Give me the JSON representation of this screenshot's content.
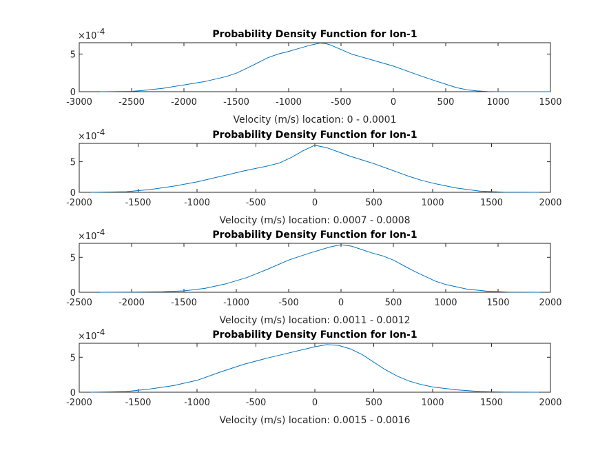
{
  "figure": {
    "background": "#ffffff"
  },
  "colors": {
    "line": "#0072BD",
    "axis": "#262626"
  },
  "chart_data": [
    {
      "type": "line",
      "title": "Probability Density Function for Ion-1",
      "xlabel": "Velocity (m/s) location: 0 - 0.0001",
      "ylabel": "",
      "multiplier_base": "×10",
      "multiplier_exp": "-4",
      "xlim": [
        -3000,
        1500
      ],
      "ylim": [
        0,
        6.5
      ],
      "xticks": [
        -3000,
        -2500,
        -2000,
        -1500,
        -1000,
        -500,
        0,
        500,
        1000,
        1500
      ],
      "yticks": [
        0,
        5
      ],
      "series": [
        {
          "x": [
            -2800,
            -2500,
            -2400,
            -2200,
            -2000,
            -1800,
            -1600,
            -1500,
            -1400,
            -1300,
            -1200,
            -1100,
            -1000,
            -900,
            -800,
            -700,
            -650,
            -600,
            -500,
            -400,
            -300,
            -200,
            -100,
            0,
            100,
            200,
            300,
            400,
            500,
            600,
            700,
            800,
            900,
            1000,
            1500
          ],
          "y": [
            0,
            0.05,
            0.15,
            0.45,
            0.9,
            1.35,
            2.0,
            2.45,
            3.1,
            3.8,
            4.5,
            5.0,
            5.35,
            5.75,
            6.15,
            6.45,
            6.4,
            6.2,
            5.6,
            5.0,
            4.6,
            4.2,
            3.8,
            3.4,
            2.9,
            2.4,
            1.9,
            1.45,
            1.0,
            0.55,
            0.25,
            0.1,
            0.03,
            0,
            0
          ]
        }
      ]
    },
    {
      "type": "line",
      "title": "Probability Density Function for Ion-1",
      "xlabel": "Velocity (m/s) location: 0.0007 - 0.0008",
      "ylabel": "",
      "multiplier_base": "×10",
      "multiplier_exp": "-4",
      "xlim": [
        -2000,
        2000
      ],
      "ylim": [
        0,
        8
      ],
      "xticks": [
        -2000,
        -1500,
        -1000,
        -500,
        0,
        500,
        1000,
        1500,
        2000
      ],
      "yticks": [
        0,
        5
      ],
      "series": [
        {
          "x": [
            -1900,
            -1600,
            -1400,
            -1200,
            -1000,
            -800,
            -600,
            -400,
            -300,
            -200,
            -100,
            0,
            100,
            200,
            300,
            400,
            500,
            600,
            700,
            800,
            900,
            1000,
            1200,
            1400,
            1600,
            1900
          ],
          "y": [
            0,
            0.1,
            0.45,
            1.0,
            1.7,
            2.6,
            3.5,
            4.3,
            4.8,
            5.7,
            6.8,
            7.7,
            7.3,
            6.6,
            5.9,
            5.3,
            4.7,
            4.0,
            3.3,
            2.6,
            2.0,
            1.5,
            0.7,
            0.2,
            0.03,
            0
          ]
        }
      ]
    },
    {
      "type": "line",
      "title": "Probability Density Function for Ion-1",
      "xlabel": "Velocity (m/s) location: 0.0011 - 0.0012",
      "ylabel": "",
      "multiplier_base": "×10",
      "multiplier_exp": "-4",
      "xlim": [
        -2500,
        2000
      ],
      "ylim": [
        0,
        7
      ],
      "xticks": [
        -2500,
        -2000,
        -1500,
        -1000,
        -500,
        0,
        500,
        1000,
        1500,
        2000
      ],
      "yticks": [
        0,
        5
      ],
      "series": [
        {
          "x": [
            -2300,
            -2000,
            -1700,
            -1500,
            -1300,
            -1100,
            -900,
            -700,
            -500,
            -300,
            -100,
            0,
            100,
            200,
            300,
            400,
            500,
            600,
            700,
            800,
            900,
            1000,
            1200,
            1400,
            1600,
            1900
          ],
          "y": [
            0,
            0.02,
            0.08,
            0.2,
            0.55,
            1.2,
            2.1,
            3.3,
            4.6,
            5.6,
            6.5,
            6.8,
            6.6,
            6.1,
            5.6,
            5.2,
            4.6,
            3.8,
            3.0,
            2.3,
            1.6,
            1.1,
            0.45,
            0.15,
            0.03,
            0
          ]
        }
      ]
    },
    {
      "type": "line",
      "title": "Probability Density Function for Ion-1",
      "xlabel": "Velocity (m/s) location: 0.0015 - 0.0016",
      "ylabel": "",
      "multiplier_base": "×10",
      "multiplier_exp": "-4",
      "xlim": [
        -2000,
        2000
      ],
      "ylim": [
        0,
        7
      ],
      "xticks": [
        -2000,
        -1500,
        -1000,
        -500,
        0,
        500,
        1000,
        1500,
        2000
      ],
      "yticks": [
        0,
        5
      ],
      "series": [
        {
          "x": [
            -1900,
            -1600,
            -1400,
            -1200,
            -1000,
            -800,
            -600,
            -400,
            -200,
            0,
            100,
            200,
            300,
            400,
            500,
            600,
            700,
            800,
            900,
            1000,
            1200,
            1400,
            1600,
            1900
          ],
          "y": [
            0,
            0.1,
            0.45,
            0.95,
            1.7,
            2.9,
            4.0,
            4.9,
            5.7,
            6.5,
            6.8,
            6.7,
            6.2,
            5.4,
            4.3,
            3.2,
            2.3,
            1.6,
            1.1,
            0.75,
            0.35,
            0.1,
            0.02,
            0
          ]
        }
      ]
    }
  ]
}
